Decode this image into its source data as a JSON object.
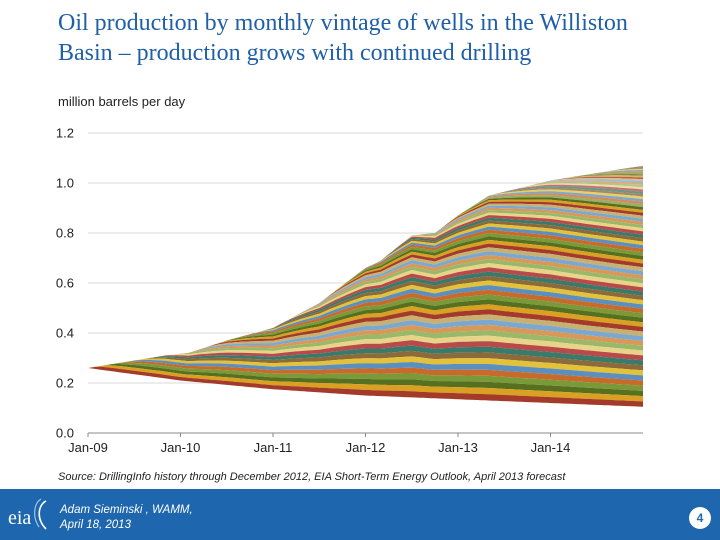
{
  "slide": {
    "title_line1": "Oil production by monthly vintage of wells in the Williston",
    "title_line2": "Basin – production grows with continued drilling",
    "unit_label": "million barrels per day",
    "source": "Source: DrillingInfo history through December 2012, EIA Short-Term Energy Outlook, April 2013 forecast",
    "author": "Adam Sieminski , WAMM,",
    "date": "April 18, 2013",
    "page_number": "4",
    "logo_text": "eia"
  },
  "colors": {
    "footer_bg": "#1e66ad",
    "title": "#1f5fa8",
    "base_layer": "#135e8d",
    "layer_palette": [
      "#a33a2a",
      "#d9a021",
      "#56701f",
      "#7a9a3a",
      "#c86a2a",
      "#5a8fbf",
      "#e3c23a",
      "#8c6a3a",
      "#3a7a6a",
      "#b84a4a",
      "#e8d488",
      "#9ab86a",
      "#d89858",
      "#7aa8d0",
      "#c8b070"
    ]
  },
  "chart_data": {
    "type": "area",
    "title": "Oil production by monthly vintage of wells in the Williston Basin",
    "ylabel": "million barrels per day",
    "xlabel": "",
    "ylim": [
      0,
      1.2
    ],
    "yticks": [
      "0.0",
      "0.2",
      "0.4",
      "0.6",
      "0.8",
      "1.0",
      "1.2"
    ],
    "xticks": [
      "Jan-09",
      "Jan-10",
      "Jan-11",
      "Jan-12",
      "Jan-13",
      "Jan-14"
    ],
    "x_range_months": [
      0,
      72
    ],
    "history_through": "Dec-2012",
    "forecast": "EIA Short-Term Energy Outlook, April 2013",
    "total_production": [
      {
        "month": 0,
        "value": 0.26
      },
      {
        "month": 6,
        "value": 0.29
      },
      {
        "month": 10,
        "value": 0.31
      },
      {
        "month": 13,
        "value": 0.32
      },
      {
        "month": 18,
        "value": 0.37
      },
      {
        "month": 24,
        "value": 0.42
      },
      {
        "month": 30,
        "value": 0.52
      },
      {
        "month": 36,
        "value": 0.66
      },
      {
        "month": 38,
        "value": 0.69
      },
      {
        "month": 42,
        "value": 0.79
      },
      {
        "month": 45,
        "value": 0.8
      },
      {
        "month": 48,
        "value": 0.87
      },
      {
        "month": 52,
        "value": 0.95
      },
      {
        "month": 56,
        "value": 0.98
      },
      {
        "month": 60,
        "value": 1.01
      },
      {
        "month": 66,
        "value": 1.04
      },
      {
        "month": 72,
        "value": 1.07
      }
    ],
    "pre_2009_wells_production": [
      {
        "month": 0,
        "value": 0.26
      },
      {
        "month": 12,
        "value": 0.21
      },
      {
        "month": 24,
        "value": 0.175
      },
      {
        "month": 36,
        "value": 0.15
      },
      {
        "month": 48,
        "value": 0.135
      },
      {
        "month": 60,
        "value": 0.12
      },
      {
        "month": 72,
        "value": 0.105
      }
    ]
  }
}
